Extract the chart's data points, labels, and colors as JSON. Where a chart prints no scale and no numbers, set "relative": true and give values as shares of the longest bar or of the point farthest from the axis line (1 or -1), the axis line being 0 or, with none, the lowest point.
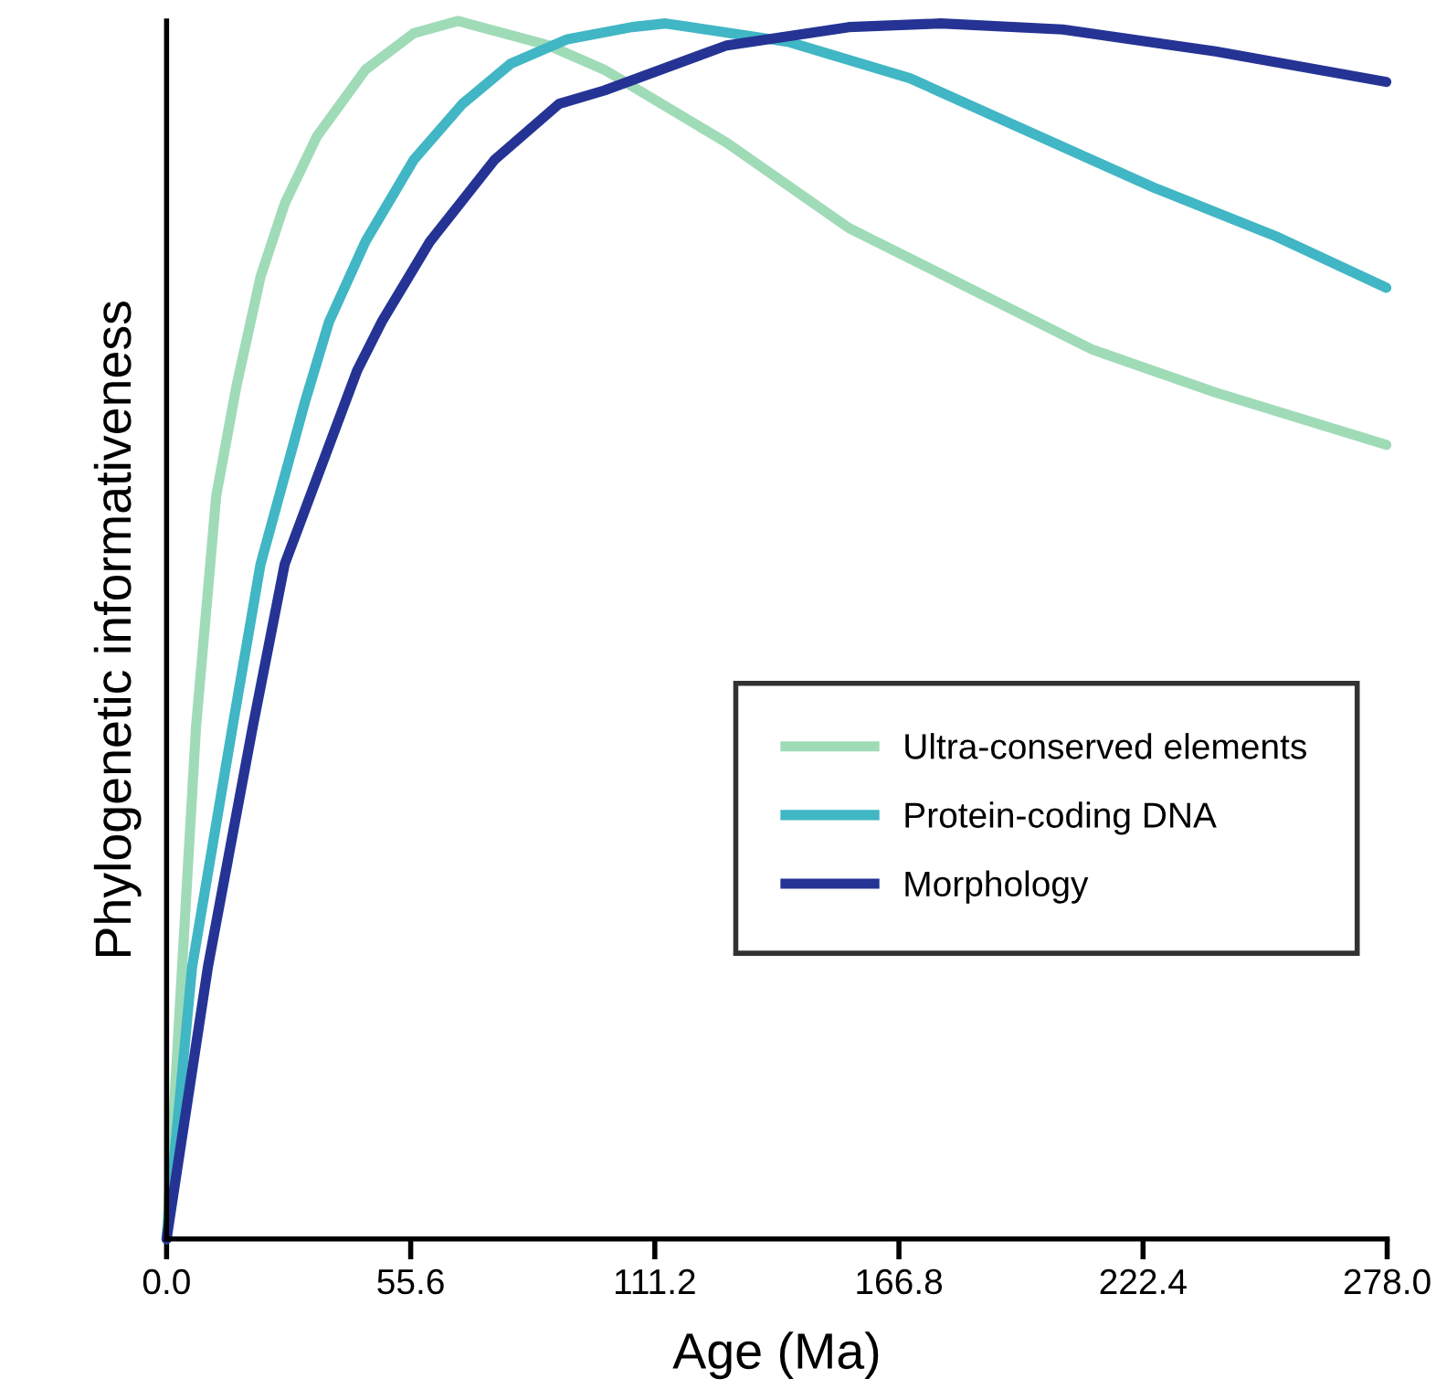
{
  "chart_data": {
    "type": "line",
    "relative": true,
    "xlabel": "Age (Ma)",
    "ylabel": "Phylogenetic informativeness",
    "xlim": [
      0,
      278
    ],
    "xticks": [
      {
        "value": 0,
        "label": "0.0"
      },
      55.6,
      111.2,
      166.8,
      222.4,
      {
        "value": 278,
        "label": "278.0"
      }
    ],
    "tick_labels": "x",
    "legend": "bottom right",
    "grid": false,
    "marker": "none",
    "line_style": "solid",
    "series": [
      {
        "name": "Ultra-conserved elements",
        "color": "#a0dbb8",
        "x": [
          0,
          3.0,
          6.7,
          11.3,
          15.9,
          21.4,
          26.9,
          34.2,
          45.3,
          56.3,
          66.4,
          87,
          99.7,
          127.6,
          155.4,
          183.2,
          211,
          238.9,
          277.8
        ],
        "values": [
          0,
          0.19,
          0.42,
          0.61,
          0.7,
          0.79,
          0.85,
          0.905,
          0.96,
          0.99,
          1.0,
          0.98,
          0.96,
          0.9,
          0.83,
          0.78,
          0.73,
          0.695,
          0.652
        ]
      },
      {
        "name": "Protein-coding DNA",
        "color": "#41b6c4",
        "x": [
          0,
          5.8,
          15.0,
          21.4,
          31.5,
          37.0,
          45.3,
          56.3,
          67.4,
          78.4,
          91.3,
          106,
          113.7,
          141.5,
          169.3,
          197.1,
          225,
          252.8,
          277.8
        ],
        "values": [
          0,
          0.223,
          0.42,
          0.554,
          0.687,
          0.753,
          0.819,
          0.886,
          0.932,
          0.965,
          0.985,
          0.995,
          0.998,
          0.983,
          0.953,
          0.908,
          0.863,
          0.823,
          0.781
        ]
      },
      {
        "name": "Morphology",
        "color": "#253494",
        "x": [
          0,
          9.4,
          19.6,
          26.9,
          43.4,
          49.0,
          60.0,
          74.7,
          89.4,
          99.7,
          127.6,
          155.4,
          176.3,
          204.1,
          238.9,
          277.8
        ],
        "values": [
          0,
          0.223,
          0.42,
          0.554,
          0.713,
          0.753,
          0.819,
          0.886,
          0.932,
          0.943,
          0.98,
          0.995,
          0.998,
          0.993,
          0.975,
          0.95
        ]
      }
    ]
  }
}
